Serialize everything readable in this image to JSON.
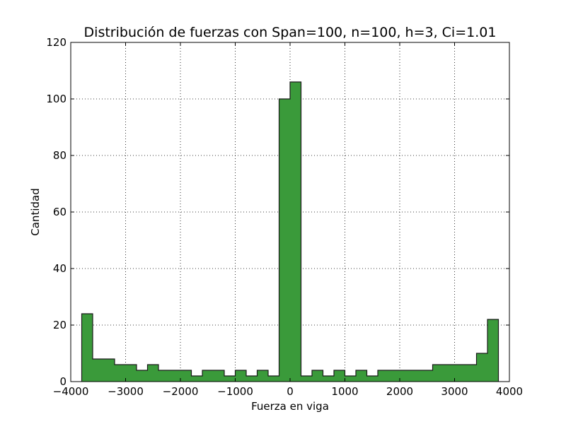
{
  "chart_data": {
    "type": "histogram",
    "title": "Distribución de fuerzas con Span=100, n=100, h=3, Ci=1.01",
    "xlabel": "Fuerza en viga",
    "ylabel": "Cantidad",
    "xlim": [
      -4000,
      4000
    ],
    "ylim": [
      0,
      120
    ],
    "xticks": [
      -4000,
      -3000,
      -2000,
      -1000,
      0,
      1000,
      2000,
      3000,
      4000
    ],
    "xtick_labels": [
      "−4000",
      "−3000",
      "−2000",
      "−1000",
      "0",
      "1000",
      "2000",
      "3000",
      "4000"
    ],
    "yticks": [
      0,
      20,
      40,
      60,
      80,
      100,
      120
    ],
    "ytick_labels": [
      "0",
      "20",
      "40",
      "60",
      "80",
      "100",
      "120"
    ],
    "grid": true,
    "fill_color": "#3a9a3a",
    "edge_color": "#1a1a1a",
    "bin_edges": [
      -3800,
      -3600,
      -3400,
      -3200,
      -3000,
      -2800,
      -2600,
      -2400,
      -2200,
      -2000,
      -1800,
      -1600,
      -1400,
      -1200,
      -1000,
      -800,
      -600,
      -400,
      -200,
      0,
      200,
      400,
      600,
      800,
      1000,
      1200,
      1400,
      1600,
      1800,
      2000,
      2200,
      2400,
      2600,
      2800,
      3000,
      3200,
      3400,
      3600,
      3800
    ],
    "values": [
      24,
      8,
      8,
      6,
      6,
      4,
      6,
      4,
      4,
      4,
      2,
      4,
      4,
      2,
      4,
      2,
      4,
      2,
      100,
      106,
      2,
      4,
      2,
      4,
      2,
      4,
      2,
      4,
      4,
      4,
      4,
      4,
      6,
      6,
      6,
      6,
      10,
      22
    ]
  }
}
